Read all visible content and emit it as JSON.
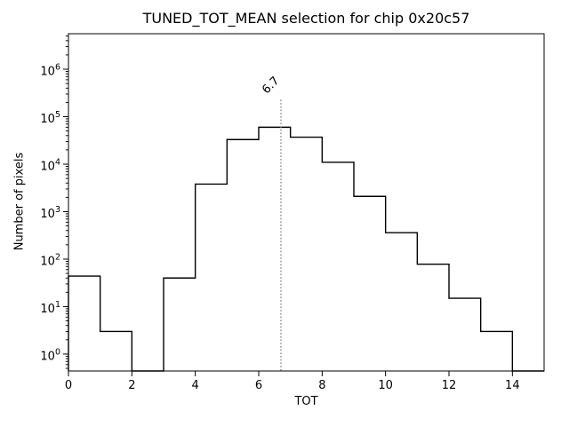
{
  "chart_data": {
    "type": "bar",
    "subtype": "step-histogram",
    "title": "TUNED_TOT_MEAN selection for chip 0x20c57",
    "xlabel": "TOT",
    "ylabel": "Number of pixels",
    "xlim": [
      0,
      15
    ],
    "ylim": [
      0.44,
      5600000
    ],
    "yscale": "log",
    "grid": false,
    "legend": null,
    "x_ticks": [
      0,
      2,
      4,
      6,
      8,
      10,
      12,
      14
    ],
    "y_tick_exponents": [
      0,
      1,
      2,
      3,
      4,
      5,
      6
    ],
    "bin_edges": [
      0,
      1,
      2,
      3,
      4,
      5,
      6,
      7,
      8,
      9,
      10,
      11,
      12,
      13,
      14,
      15
    ],
    "counts": [
      44,
      3,
      0,
      40,
      3800,
      33000,
      60000,
      37000,
      11000,
      2100,
      360,
      78,
      15,
      3,
      0
    ],
    "line_color": "#000000",
    "axis_color": "#000000",
    "background_color": "#ffffff",
    "vline": {
      "x": 6.7,
      "label": "6.7",
      "top_value": 220000,
      "color": "#999999",
      "label_color": "#8c8c8c",
      "style": "dotted"
    }
  }
}
